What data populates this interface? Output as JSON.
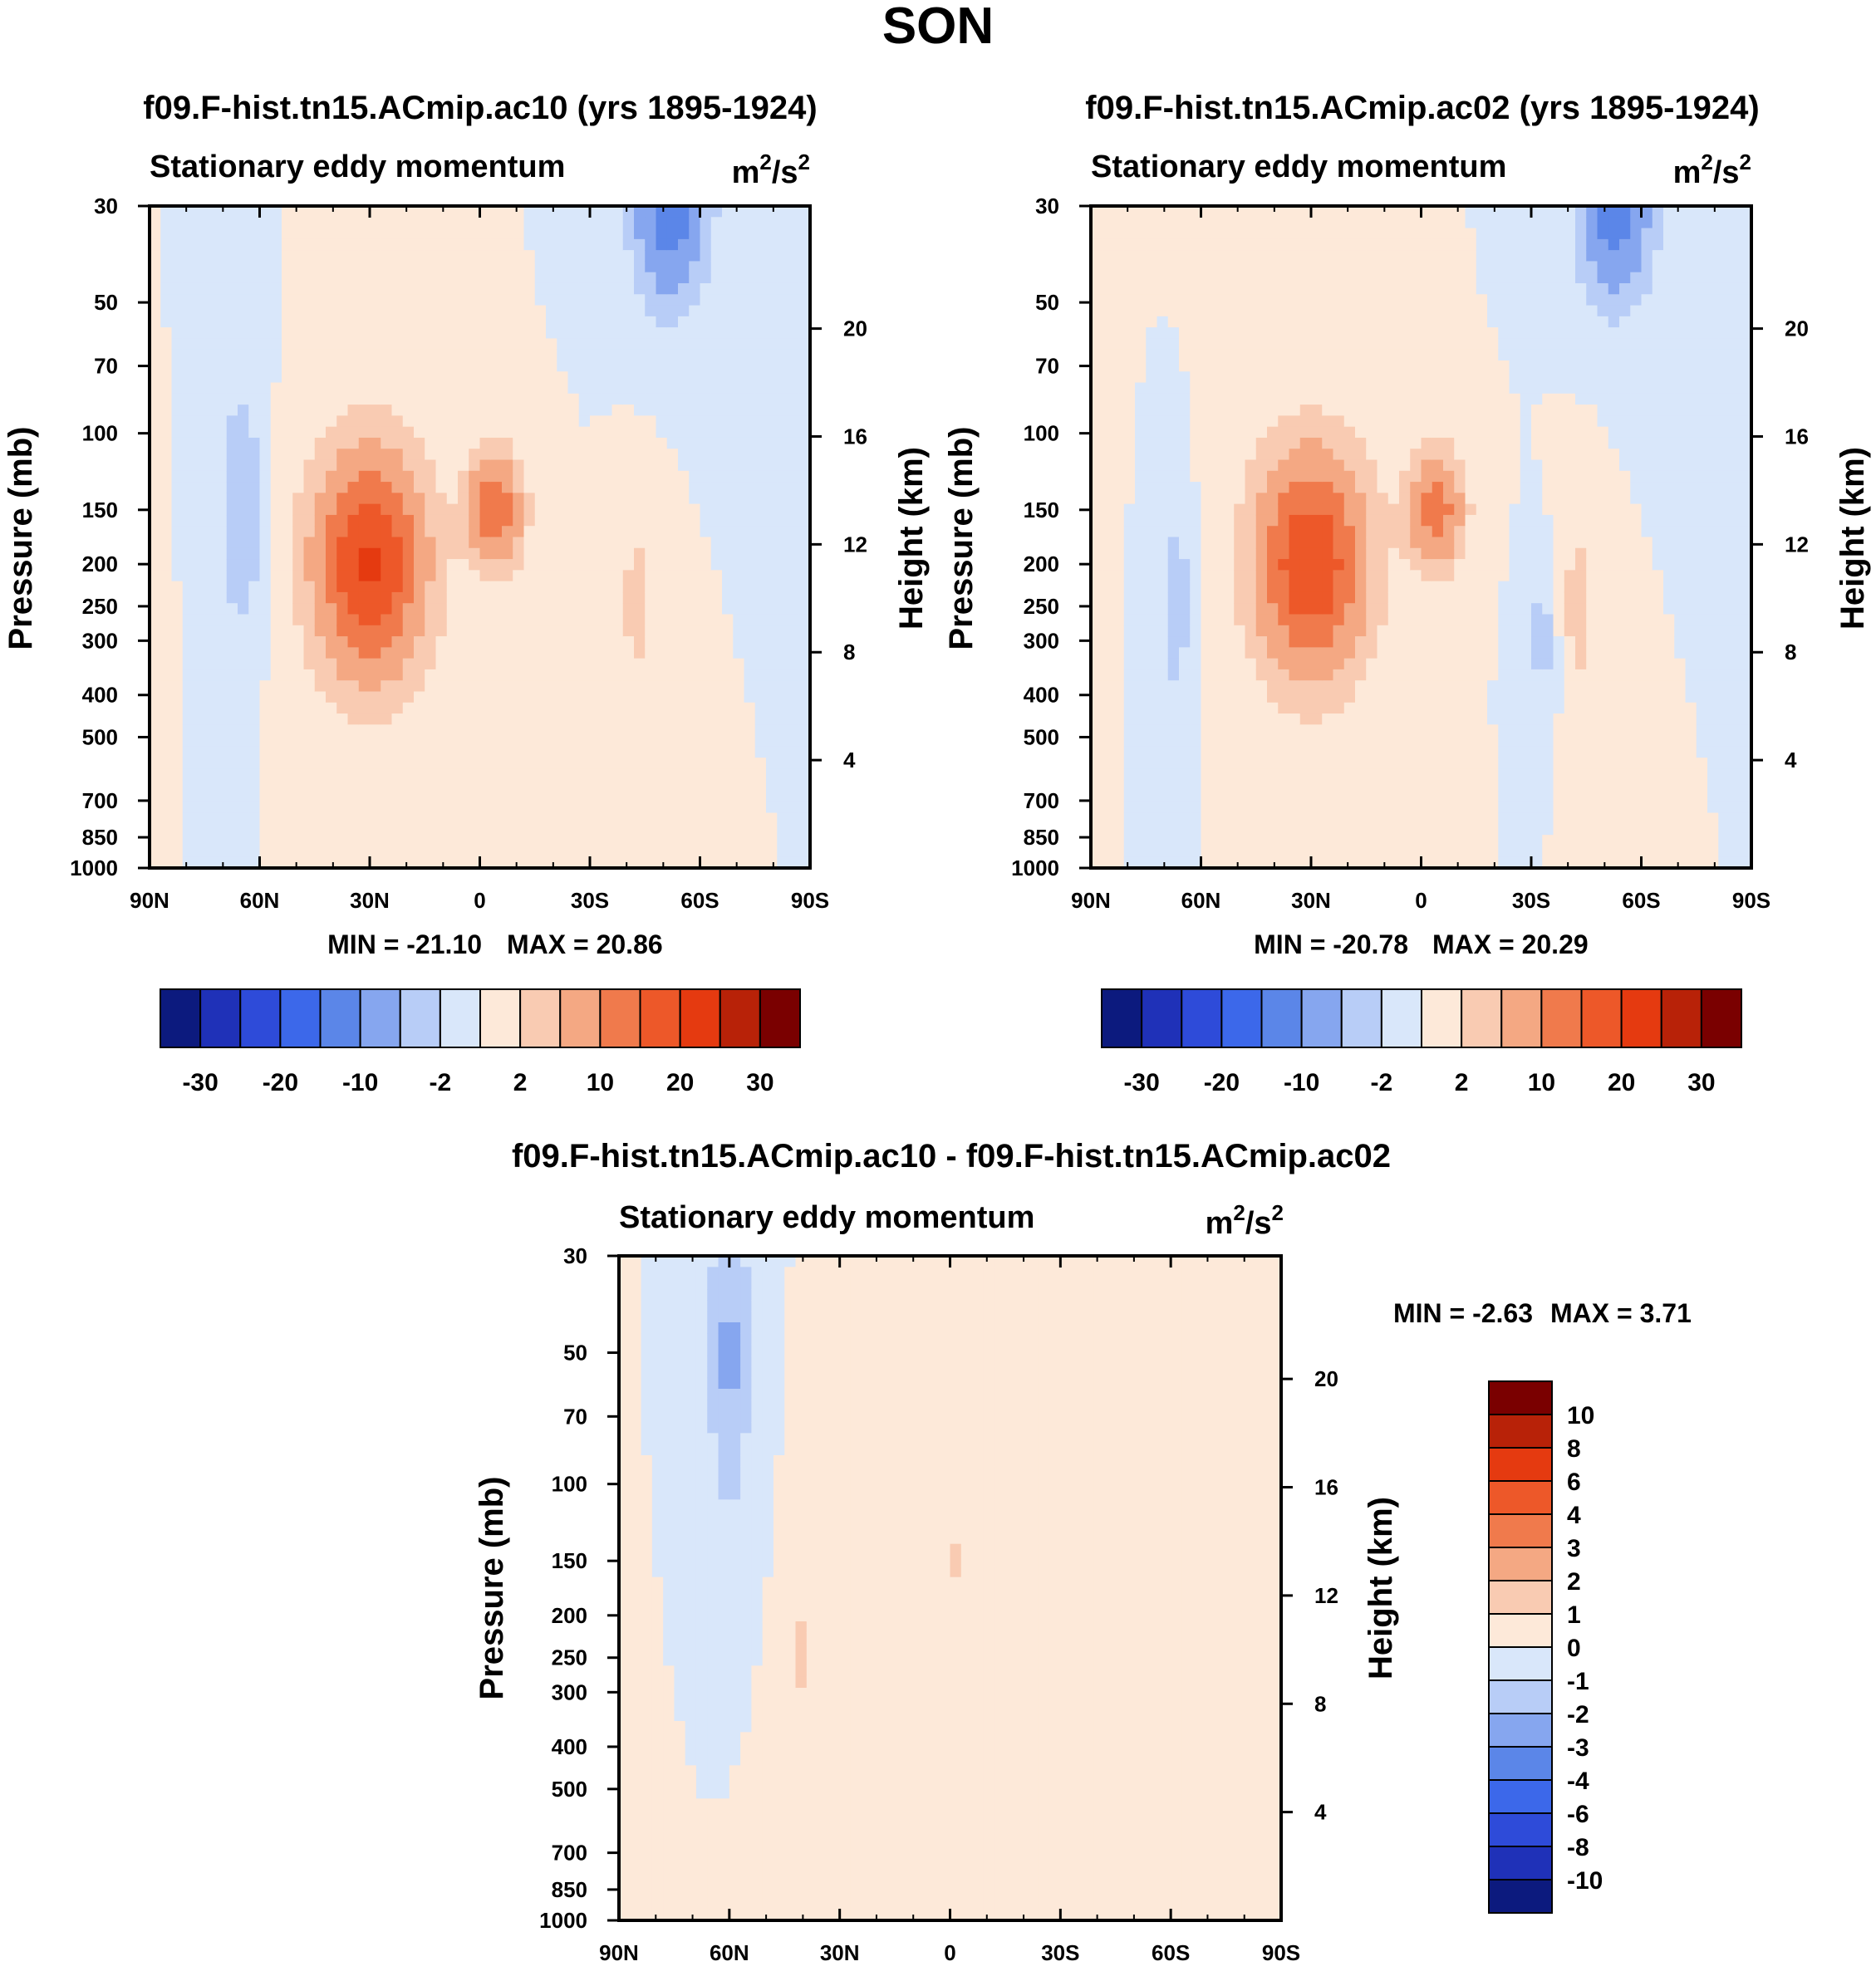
{
  "figure": {
    "season": "SON"
  },
  "colors": {
    "levels15": [
      "#0c1a7e",
      "#1f31b8",
      "#2e4bd9",
      "#3c68ea",
      "#5b86e8",
      "#86a6ef",
      "#b8cdf7",
      "#d9e7fa",
      "#fde9d9",
      "#f9cbb2",
      "#f4a883",
      "#f07a4c",
      "#ed5829",
      "#e53a10",
      "#b82208",
      "#7a0000"
    ],
    "diff16": [
      "#0c1a7e",
      "#1f31b8",
      "#2e4bd9",
      "#3c68ea",
      "#5b86e8",
      "#86a6ef",
      "#b8cdf7",
      "#d9e7fa",
      "#fde9d9",
      "#f9cbb2",
      "#f4a883",
      "#f07a4c",
      "#ed5829",
      "#e53a10",
      "#b82208",
      "#7a0000"
    ]
  },
  "chart_data": [
    {
      "type": "heatmap",
      "title": "f09.F-hist.tn15.ACmip.ac10 (yrs 1895-1924)",
      "subtitle": "Stationary eddy momentum",
      "units": "m²/s²",
      "units_base": "m",
      "units_mid": "/s",
      "units_sup": "2",
      "ylabel": "Pressure (mb)",
      "y2label": "Height (km)",
      "xticks": [
        "90N",
        "60N",
        "30N",
        "0",
        "30S",
        "60S",
        "90S"
      ],
      "yticks": [
        "30",
        "50",
        "70",
        "100",
        "150",
        "200",
        "250",
        "300",
        "400",
        "500",
        "700",
        "850",
        "1000"
      ],
      "y2ticks": [
        "20",
        "16",
        "12",
        "8",
        "4"
      ],
      "min_label": "MIN = -21.10",
      "max_label": "MAX =  20.86",
      "min": -21.1,
      "max": 20.86,
      "colorbar_ticks": [
        "-30",
        "-20",
        "-10",
        "-2",
        "2",
        "10",
        "20",
        "30"
      ],
      "blobs": [
        {
          "lat": 30,
          "p": 200,
          "value": 21,
          "lat_halfwidth": 14,
          "logp_halfwidth": 0.55
        },
        {
          "lat": -4,
          "p": 150,
          "value": 14,
          "lat_halfwidth": 7,
          "logp_halfwidth": 0.28
        },
        {
          "lat": -52,
          "p": 30,
          "value": -14,
          "lat_halfwidth": 9,
          "logp_halfwidth": 0.45
        },
        {
          "lat": 65,
          "p": 150,
          "value": -5,
          "lat_halfwidth": 5,
          "logp_halfwidth": 0.6
        },
        {
          "lat": -43,
          "p": 250,
          "value": 3,
          "lat_halfwidth": 5,
          "logp_halfwidth": 0.45
        }
      ]
    },
    {
      "type": "heatmap",
      "title": "f09.F-hist.tn15.ACmip.ac02 (yrs 1895-1924)",
      "subtitle": "Stationary eddy momentum",
      "units": "m²/s²",
      "units_base": "m",
      "units_mid": "/s",
      "units_sup": "2",
      "ylabel": "Pressure (mb)",
      "y2label": "Height (km)",
      "xticks": [
        "90N",
        "60N",
        "30N",
        "0",
        "30S",
        "60S",
        "90S"
      ],
      "yticks": [
        "30",
        "50",
        "70",
        "100",
        "150",
        "200",
        "250",
        "300",
        "400",
        "500",
        "700",
        "850",
        "1000"
      ],
      "y2ticks": [
        "20",
        "16",
        "12",
        "8",
        "4"
      ],
      "min_label": "MIN = -20.78",
      "max_label": "MAX =  20.29",
      "min": -20.78,
      "max": 20.29,
      "colorbar_ticks": [
        "-30",
        "-20",
        "-10",
        "-2",
        "2",
        "10",
        "20",
        "30"
      ],
      "blobs": [
        {
          "lat": 30,
          "p": 200,
          "value": 20,
          "lat_halfwidth": 14,
          "logp_halfwidth": 0.55
        },
        {
          "lat": -4,
          "p": 150,
          "value": 13,
          "lat_halfwidth": 7,
          "logp_halfwidth": 0.28
        },
        {
          "lat": -53,
          "p": 30,
          "value": -13,
          "lat_halfwidth": 9,
          "logp_halfwidth": 0.45
        },
        {
          "lat": 67,
          "p": 250,
          "value": -4,
          "lat_halfwidth": 4,
          "logp_halfwidth": 0.45
        },
        {
          "lat": -43,
          "p": 250,
          "value": 3,
          "lat_halfwidth": 5,
          "logp_halfwidth": 0.5
        },
        {
          "lat": -33,
          "p": 300,
          "value": -3,
          "lat_halfwidth": 4,
          "logp_halfwidth": 0.35
        }
      ]
    },
    {
      "type": "heatmap",
      "title": "f09.F-hist.tn15.ACmip.ac10 - f09.F-hist.tn15.ACmip.ac02",
      "subtitle": "Stationary eddy momentum",
      "units": "m²/s²",
      "units_base": "m",
      "units_mid": "/s",
      "units_sup": "2",
      "ylabel": "Pressure (mb)",
      "y2label": "Height (km)",
      "xticks": [
        "90N",
        "60N",
        "30N",
        "0",
        "30S",
        "60S",
        "90S"
      ],
      "yticks": [
        "30",
        "50",
        "70",
        "100",
        "150",
        "200",
        "250",
        "300",
        "400",
        "500",
        "700",
        "850",
        "1000"
      ],
      "y2ticks": [
        "20",
        "16",
        "12",
        "8",
        "4"
      ],
      "min_label": "MIN =  -2.63",
      "max_label": "MAX =   3.71",
      "min": -2.63,
      "max": 3.71,
      "colorbar_ticks": [
        "10",
        "8",
        "6",
        "4",
        "3",
        "2",
        "1",
        "0",
        "-1",
        "-2",
        "-3",
        "-4",
        "-6",
        "-8",
        "-10"
      ],
      "blobs": [
        {
          "lat": 60,
          "p": 50,
          "value": -2.2,
          "lat_halfwidth": 6,
          "logp_halfwidth": 0.9
        },
        {
          "lat": 40,
          "p": 250,
          "value": 2.0,
          "lat_halfwidth": 2,
          "logp_halfwidth": 0.2
        },
        {
          "lat": -2,
          "p": 150,
          "value": 1.5,
          "lat_halfwidth": 2,
          "logp_halfwidth": 0.12
        },
        {
          "lat": 15,
          "p": 400,
          "value": 0.6,
          "lat_halfwidth": 20,
          "logp_halfwidth": 1.2
        }
      ]
    }
  ]
}
